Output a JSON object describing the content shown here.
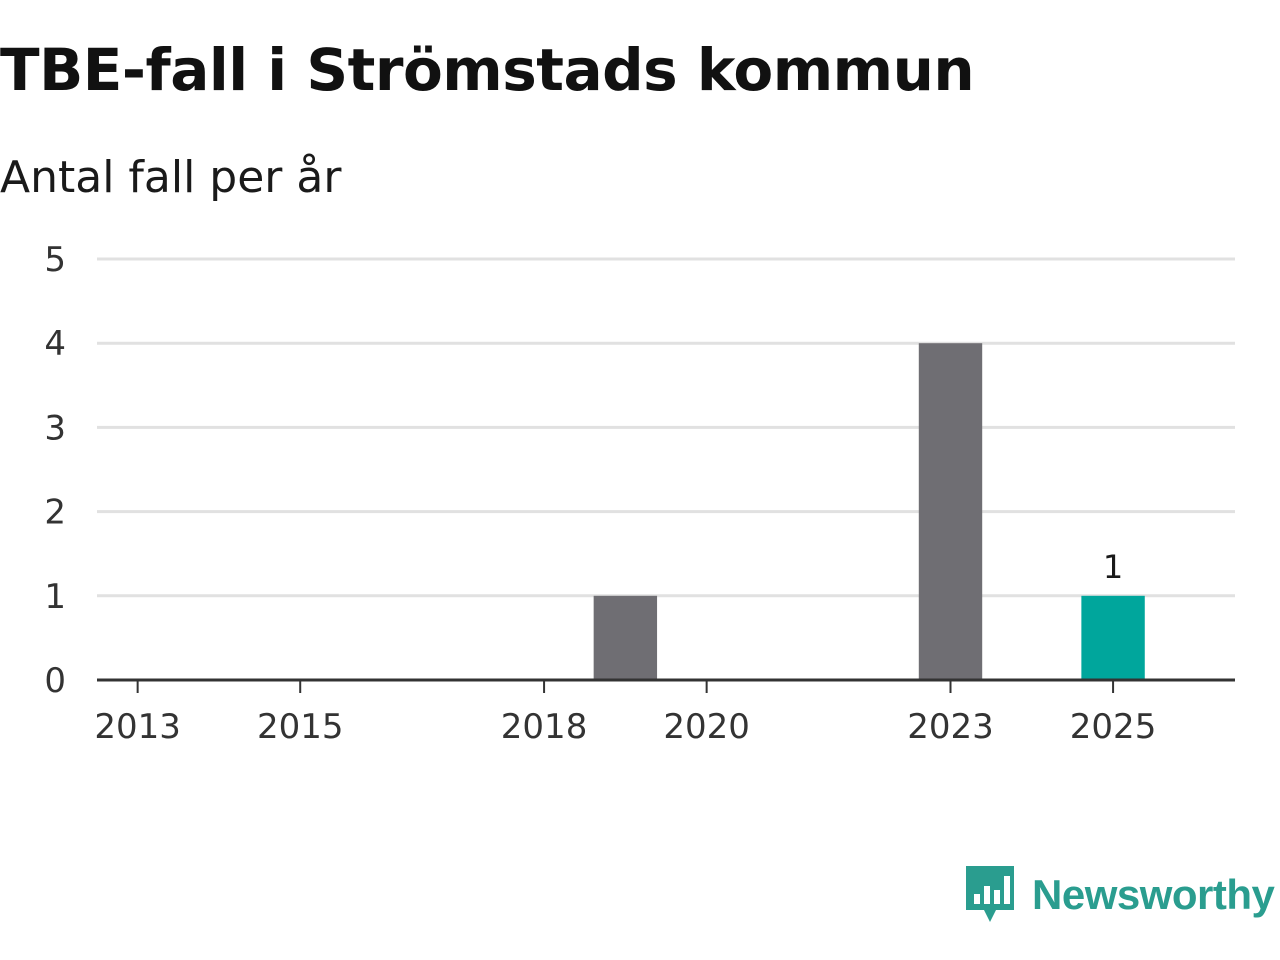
{
  "header": {
    "title": "TBE-fall i Strömstads kommun",
    "subtitle": "Antal fall per år"
  },
  "brand": {
    "name": "Newsworthy",
    "icon": "newsworthy-logo-icon",
    "color": "#2a9d8f"
  },
  "chart_data": {
    "type": "bar",
    "title": "TBE-fall i Strömstads kommun",
    "subtitle": "Antal fall per år",
    "xlabel": "",
    "ylabel": "",
    "x": [
      2013,
      2014,
      2015,
      2016,
      2017,
      2018,
      2019,
      2020,
      2021,
      2022,
      2023,
      2024,
      2025
    ],
    "values": [
      0,
      0,
      0,
      0,
      0,
      0,
      1,
      0,
      0,
      0,
      4,
      0,
      1
    ],
    "x_ticks": [
      "2013",
      "2015",
      "2018",
      "2020",
      "2023",
      "2025"
    ],
    "y_ticks": [
      "0",
      "1",
      "2",
      "3",
      "4",
      "5"
    ],
    "ylim": [
      0,
      5
    ],
    "xlim": [
      2012.5,
      2026.5
    ],
    "grid": true,
    "highlight": {
      "x": 2025,
      "label": "1"
    },
    "colors": {
      "bar": "#6f6e73",
      "highlight": "#00a69c",
      "grid": "#e1e1e1",
      "axis": "#333333"
    }
  }
}
